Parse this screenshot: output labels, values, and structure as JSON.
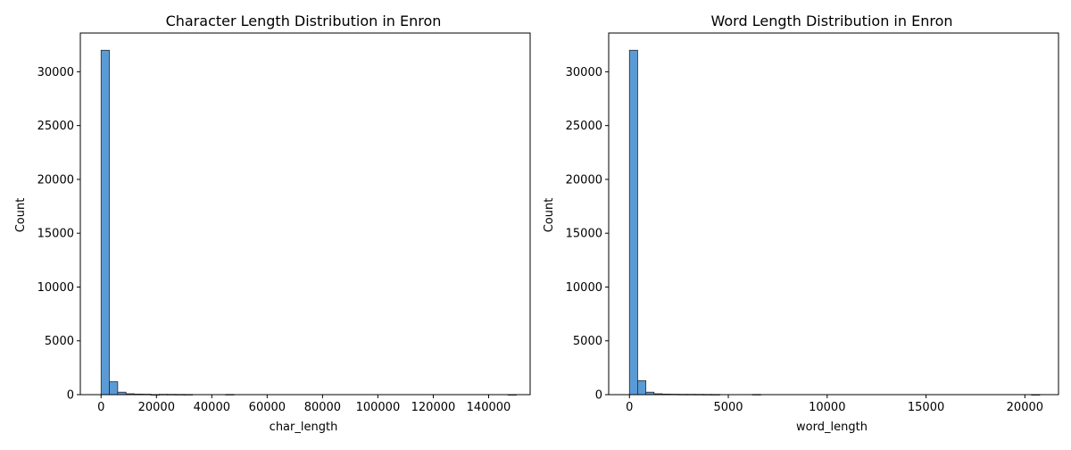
{
  "chart_data": [
    {
      "type": "bar",
      "title": "Character Length Distribution in Enron",
      "xlabel": "char_length",
      "ylabel": "Count",
      "xlim": [
        -7500,
        155000
      ],
      "ylim": [
        0,
        33600
      ],
      "xticks": [
        0,
        20000,
        40000,
        60000,
        80000,
        100000,
        120000,
        140000
      ],
      "xtick_labels": [
        "0",
        "20000",
        "40000",
        "60000",
        "80000",
        "100000",
        "120000",
        "140000"
      ],
      "yticks": [
        0,
        5000,
        10000,
        15000,
        20000,
        25000,
        30000
      ],
      "ytick_labels": [
        "0",
        "5000",
        "10000",
        "15000",
        "20000",
        "25000",
        "30000"
      ],
      "bin_start": 0,
      "bin_width": 3000,
      "values": [
        32000,
        1200,
        230,
        80,
        50,
        40,
        5,
        30,
        25,
        20,
        15,
        0,
        0,
        0,
        0,
        20,
        0,
        0,
        0,
        0,
        0,
        0,
        0,
        0,
        0,
        0,
        0,
        0,
        0,
        0,
        0,
        0,
        0,
        0,
        0,
        0,
        0,
        0,
        0,
        0,
        0,
        0,
        0,
        0,
        0,
        0,
        0,
        0,
        0,
        5
      ],
      "bar_color": "#5a9bd5",
      "edge_color": "#2b2b2b",
      "grid": false
    },
    {
      "type": "bar",
      "title": "Word Length Distribution in Enron",
      "xlabel": "word_length",
      "ylabel": "Count",
      "xlim": [
        -1050,
        21700
      ],
      "ylim": [
        0,
        33600
      ],
      "xticks": [
        0,
        5000,
        10000,
        15000,
        20000
      ],
      "xtick_labels": [
        "0",
        "5000",
        "10000",
        "15000",
        "20000"
      ],
      "yticks": [
        0,
        5000,
        10000,
        15000,
        20000,
        25000,
        30000
      ],
      "ytick_labels": [
        "0",
        "5000",
        "10000",
        "15000",
        "20000",
        "25000",
        "30000"
      ],
      "bin_start": 0,
      "bin_width": 415,
      "values": [
        32000,
        1300,
        230,
        80,
        50,
        40,
        30,
        30,
        25,
        20,
        15,
        0,
        0,
        0,
        0,
        20,
        0,
        0,
        0,
        0,
        0,
        0,
        0,
        0,
        0,
        0,
        0,
        0,
        0,
        0,
        0,
        0,
        0,
        0,
        0,
        0,
        0,
        0,
        0,
        0,
        0,
        0,
        0,
        0,
        0,
        0,
        0,
        0,
        0,
        5
      ],
      "bar_color": "#5a9bd5",
      "edge_color": "#2b2b2b",
      "grid": false
    }
  ]
}
